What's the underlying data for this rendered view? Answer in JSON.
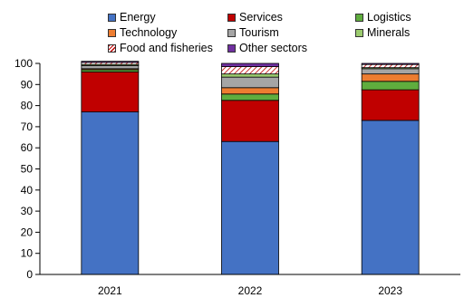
{
  "chart_data": {
    "type": "bar",
    "stacked": true,
    "categories": [
      "2021",
      "2022",
      "2023"
    ],
    "ylim": [
      0,
      100
    ],
    "yticks": [
      0,
      10,
      20,
      30,
      40,
      50,
      60,
      70,
      80,
      90,
      100
    ],
    "grid": false,
    "legend_position": "top",
    "series": [
      {
        "name": "Energy",
        "color": "#4472c4",
        "values": [
          77,
          63,
          73
        ]
      },
      {
        "name": "Services",
        "color": "#c00000",
        "values": [
          19,
          19.5,
          14.5
        ]
      },
      {
        "name": "Logistics",
        "color": "#5fad3e",
        "values": [
          1,
          3,
          4
        ]
      },
      {
        "name": "Technology",
        "color": "#ed7d31",
        "values": [
          0.5,
          3,
          3.5
        ]
      },
      {
        "name": "Tourism",
        "color": "#a5a5a5",
        "values": [
          1.5,
          5,
          2.5
        ]
      },
      {
        "name": "Minerals",
        "color": "#9bcb6e",
        "values": [
          0.5,
          1.5,
          0.5
        ]
      },
      {
        "name": "Food and fisheries",
        "color": "#c00000",
        "pattern": "hatch",
        "values": [
          1,
          3.5,
          1.5
        ]
      },
      {
        "name": "Other sectors",
        "color": "#7030a0",
        "values": [
          0.5,
          1.5,
          0.5
        ]
      }
    ]
  }
}
